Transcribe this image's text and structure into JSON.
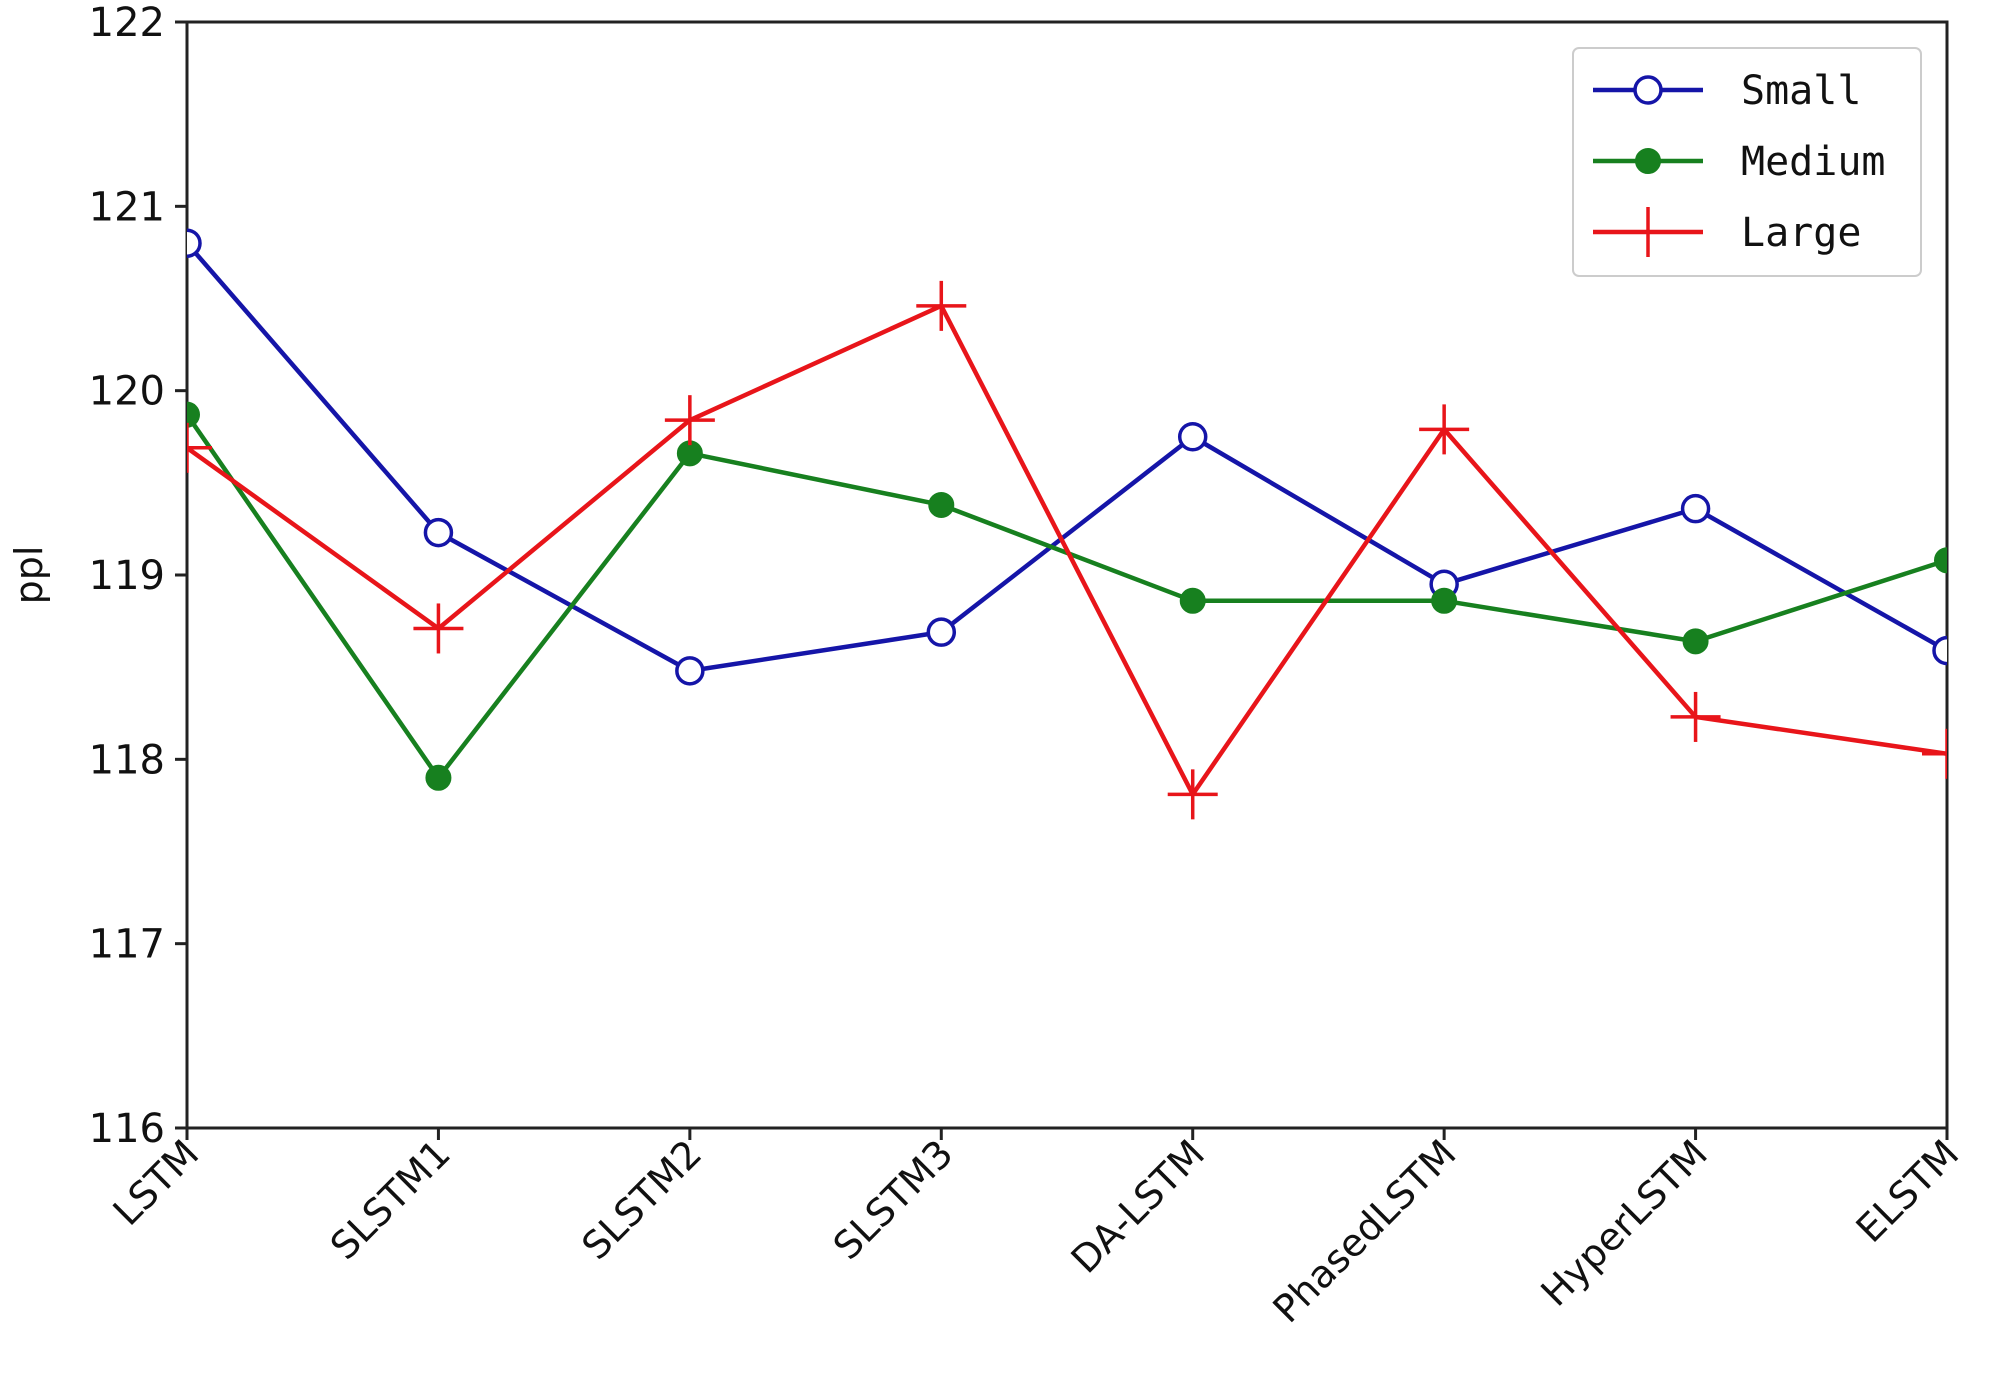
{
  "chart_data": {
    "type": "line",
    "title": "",
    "xlabel": "",
    "ylabel": "ppl",
    "ylim": [
      116,
      122
    ],
    "yticks": [
      116,
      117,
      118,
      119,
      120,
      121,
      122
    ],
    "categories": [
      "LSTM",
      "SLSTM1",
      "SLSTM2",
      "SLSTM3",
      "DA-LSTM",
      "PhasedLSTM",
      "HyperLSTM",
      "ELSTM"
    ],
    "grid": false,
    "legend_position": "top-right",
    "series": [
      {
        "name": "Small",
        "color": "#1515a8",
        "marker": "open-circle",
        "values": [
          120.8,
          119.23,
          118.48,
          118.69,
          119.75,
          118.95,
          119.36,
          118.59
        ]
      },
      {
        "name": "Medium",
        "color": "#17801f",
        "marker": "filled-circle",
        "values": [
          119.87,
          117.9,
          119.66,
          119.38,
          118.86,
          118.86,
          118.64,
          119.08
        ]
      },
      {
        "name": "Large",
        "color": "#e8151a",
        "marker": "plus",
        "values": [
          119.69,
          118.71,
          119.84,
          120.46,
          117.81,
          119.79,
          118.23,
          118.03
        ]
      }
    ]
  }
}
